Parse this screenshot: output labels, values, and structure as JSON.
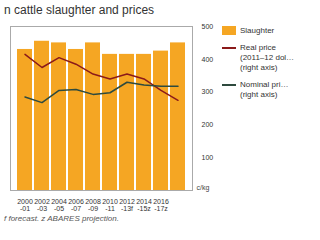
{
  "chart_data": {
    "type": "bar",
    "title": "n cattle slaughter and prices",
    "categories": [
      "2000\n-01",
      "2002\n-03",
      "2004\n-05",
      "2006\n-07",
      "2008\n-09",
      "2010\n-11",
      "2012\n-13f",
      "2014\n-15z",
      "2016\n-17z",
      null
    ],
    "series": [
      {
        "name": "Slaughter",
        "type": "bar",
        "color": "#F5A623",
        "values": [
          430,
          455,
          450,
          430,
          450,
          415,
          415,
          415,
          425,
          450
        ]
      },
      {
        "name": "Real price\n(2011–12 dol…\n(right axis)",
        "type": "line",
        "color": "#8B1A1A",
        "axis": "y2",
        "values": [
          415,
          375,
          405,
          385,
          355,
          340,
          355,
          340,
          305,
          275
        ]
      },
      {
        "name": "Nominal pri…\n(right axis)",
        "type": "line",
        "color": "#2E4A3E",
        "axis": "y2",
        "values": [
          285,
          268,
          305,
          308,
          293,
          298,
          330,
          322,
          318,
          318
        ]
      }
    ],
    "ylim": [
      0,
      500
    ],
    "yticks": [],
    "y2lim": [
      0,
      500
    ],
    "y2ticks": [
      100,
      200,
      300,
      400,
      500
    ],
    "y2label": "c/kg",
    "caption": "f forecast. z ABARES projection.",
    "grid": false,
    "legend": "right"
  }
}
